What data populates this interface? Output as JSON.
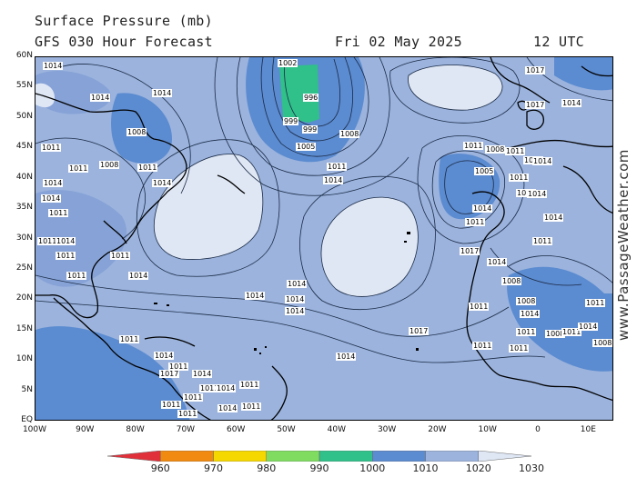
{
  "header": {
    "title": "Surface Pressure (mb)",
    "subtitle": "GFS 030 Hour Forecast",
    "valid_date": "Fri 02 May 2025",
    "valid_time": "12 UTC"
  },
  "watermark": "www.PassageWeather.com",
  "map": {
    "lat_labels": [
      "60N",
      "55N",
      "50N",
      "45N",
      "40N",
      "35N",
      "30N",
      "25N",
      "20N",
      "15N",
      "10N",
      "5N",
      "EQ"
    ],
    "lon_labels": [
      "100W",
      "90W",
      "80W",
      "70W",
      "60W",
      "50W",
      "40W",
      "30W",
      "20W",
      "10W",
      "0",
      "10E"
    ],
    "highs": [
      "North Atlantic high centre (1030 mb)",
      "Subtropical high centre (1030 mb)",
      "Central Atlantic high"
    ],
    "lows": [
      "Icelandic low centre (996 mb)",
      "Iberian cut-off low (1005 mb)"
    ],
    "isobar_labels": [
      "1014",
      "1011",
      "1014",
      "1014",
      "1008",
      "1011",
      "1008",
      "1011",
      "1014",
      "1014",
      "1014",
      "1011",
      "1011",
      "1014",
      "1011",
      "1011",
      "1011",
      "1014",
      "1002",
      "996",
      "999",
      "999",
      "1005",
      "1008",
      "1011",
      "1014",
      "1017",
      "1017",
      "1014",
      "1011",
      "1008",
      "1011",
      "1011",
      "1014",
      "1005",
      "1011",
      "1011",
      "1014",
      "1014",
      "1011",
      "1017",
      "1014",
      "1011",
      "1014",
      "1014",
      "1014",
      "1014",
      "1014",
      "1017",
      "1014",
      "1011",
      "1008",
      "1008",
      "1014",
      "1011",
      "1011",
      "1011",
      "1008",
      "1011",
      "1014",
      "1011",
      "1008",
      "1011",
      "1014",
      "1011",
      "1017",
      "1014",
      "1011",
      "1011",
      "1011",
      "1011",
      "1014",
      "1011",
      "1011",
      "1014"
    ]
  },
  "legend": {
    "labels": [
      "960",
      "970",
      "980",
      "990",
      "1000",
      "1010",
      "1020",
      "1030"
    ],
    "colors": [
      "#e0303a",
      "#f08a10",
      "#f5d800",
      "#7fdc60",
      "#30c08a",
      "#5b8bd0",
      "#9bb3dd",
      "#dfe7f5"
    ]
  },
  "colors": {
    "ocean_fill": "#9bb3dd",
    "high_fill": "#dfe7f5",
    "low_fill": "#5b8bd0",
    "deep_low_fill": "#30c08a",
    "land_low_fill": "#5b8bd0"
  }
}
